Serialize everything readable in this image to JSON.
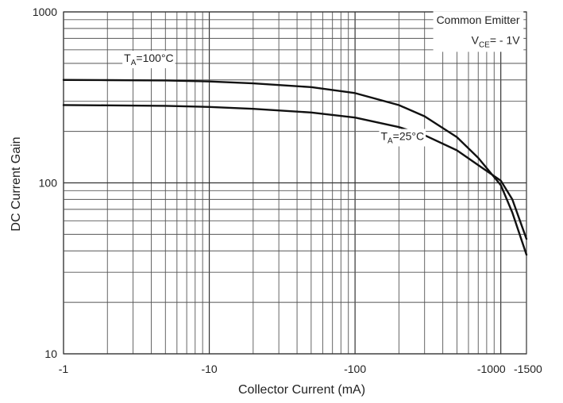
{
  "chart_data": {
    "type": "line",
    "title": "",
    "xlabel": "Collector Current (mA)",
    "ylabel": "DC Current Gain",
    "x_scale": "log",
    "y_scale": "log",
    "x_axis_note": "Collector current values are negative; axis magnitude increases to the right.",
    "xlim": [
      -1,
      -1500
    ],
    "ylim": [
      10,
      1000
    ],
    "x_ticks": [
      {
        "value": -1,
        "label": "-1"
      },
      {
        "value": -10,
        "label": "-10"
      },
      {
        "value": -100,
        "label": "-100"
      },
      {
        "value": -1000,
        "label": "-1000"
      },
      {
        "value": -1500,
        "label": "-1500"
      }
    ],
    "y_ticks": [
      {
        "value": 10,
        "label": "10"
      },
      {
        "value": 100,
        "label": "100"
      },
      {
        "value": 1000,
        "label": "1000"
      }
    ],
    "grid": true,
    "legend": "none",
    "annotations": {
      "conditions_line1": "Common Emitter",
      "conditions_vce_main": "V",
      "conditions_vce_sub": "CE",
      "conditions_vce_value": "= - 1V",
      "series_100_main": "T",
      "series_100_sub": "A",
      "series_100_value": "=100°C",
      "series_25_main": "T",
      "series_25_sub": "A",
      "series_25_value": "=25°C"
    },
    "series": [
      {
        "name": "TA=100°C",
        "x": [
          -1,
          -2,
          -5,
          -10,
          -20,
          -50,
          -100,
          -200,
          -300,
          -500,
          -700,
          -1000,
          -1200,
          -1500
        ],
        "y": [
          400,
          399,
          397,
          392,
          382,
          363,
          335,
          285,
          245,
          185,
          140,
          97,
          67,
          38
        ]
      },
      {
        "name": "TA=25°C",
        "x": [
          -1,
          -2,
          -5,
          -10,
          -20,
          -50,
          -100,
          -200,
          -300,
          -500,
          -700,
          -1000,
          -1200,
          -1500
        ],
        "y": [
          285,
          284,
          282,
          278,
          271,
          258,
          241,
          212,
          190,
          155,
          127,
          103,
          80,
          47
        ]
      }
    ],
    "colors": {
      "curve": "#111111",
      "major_grid": "#333333",
      "minor_grid": "#555555",
      "axis_text": "#222222",
      "background": "#ffffff"
    }
  }
}
